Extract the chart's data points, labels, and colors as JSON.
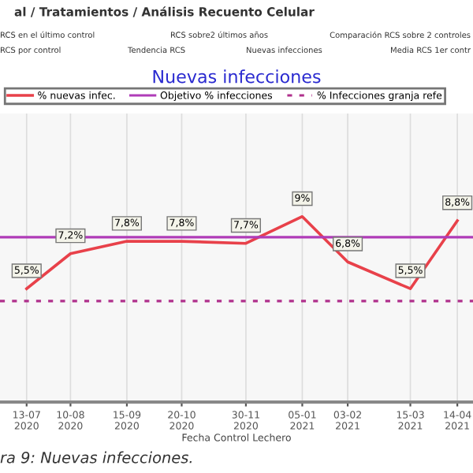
{
  "chart_data": {
    "type": "line",
    "title": "Nuevas infecciones",
    "xlabel": "Fecha Control Lechero",
    "annotations": [
      "al / Tratamientos / Análisis Recuento Celular",
      "RCS en el último control",
      "RCS sobre2 últimos años",
      "Comparación RCS sobre 2 controles",
      "RCS por control",
      "Tendencia RCS",
      "Nuevas infecciones",
      "Media RCS 1er contr",
      "ra 9: Nuevas infecciones."
    ],
    "x": [
      "2020-07-13",
      "2020-08-10",
      "2020-09-15",
      "2020-10-20",
      "2020-11-30",
      "2021-01-05",
      "2021-02-03",
      "2021-03-15",
      "2021-04-14"
    ],
    "series": [
      {
        "name": "% nuevas infec.",
        "color": "#e8414a",
        "values": [
          5.5,
          7.2,
          7.8,
          7.8,
          7.7,
          9,
          6.8,
          5.5,
          8.8
        ],
        "value_labels": [
          "5,5%",
          "7,2%",
          "7,8%",
          "7,8%",
          "7,7%",
          "9%",
          "6,8%",
          "5,5%",
          "8,8%"
        ]
      }
    ],
    "ref_lines": [
      {
        "axis": "y",
        "value": 8,
        "label": "Objetivo % infecciones",
        "color": "#b03cb8",
        "line_style": "solid"
      },
      {
        "axis": "y",
        "value": 4.9,
        "label": "% Infecciones granja refe",
        "color": "#b0308c",
        "line_style": "dotted"
      }
    ],
    "xlim": [
      "2020-06-26",
      "2021-04-24"
    ],
    "xticks": [
      {
        "value": "2020-07-13",
        "label": "13-07\n2020"
      },
      {
        "value": "2020-08-10",
        "label": "10-08\n2020"
      },
      {
        "value": "2020-09-15",
        "label": "15-09\n2020"
      },
      {
        "value": "2020-10-20",
        "label": "20-10\n2020"
      },
      {
        "value": "2020-11-30",
        "label": "30-11\n2020"
      },
      {
        "value": "2021-01-05",
        "label": "05-01\n2021"
      },
      {
        "value": "2021-02-03",
        "label": "03-02\n2021"
      },
      {
        "value": "2021-03-15",
        "label": "15-03\n2021"
      },
      {
        "value": "2021-04-14",
        "label": "14-04\n2021"
      }
    ],
    "ylim": [
      0,
      14
    ],
    "tick_labels": "x",
    "grid": "x",
    "legend": "top",
    "marker": "none",
    "line_style": "solid"
  }
}
